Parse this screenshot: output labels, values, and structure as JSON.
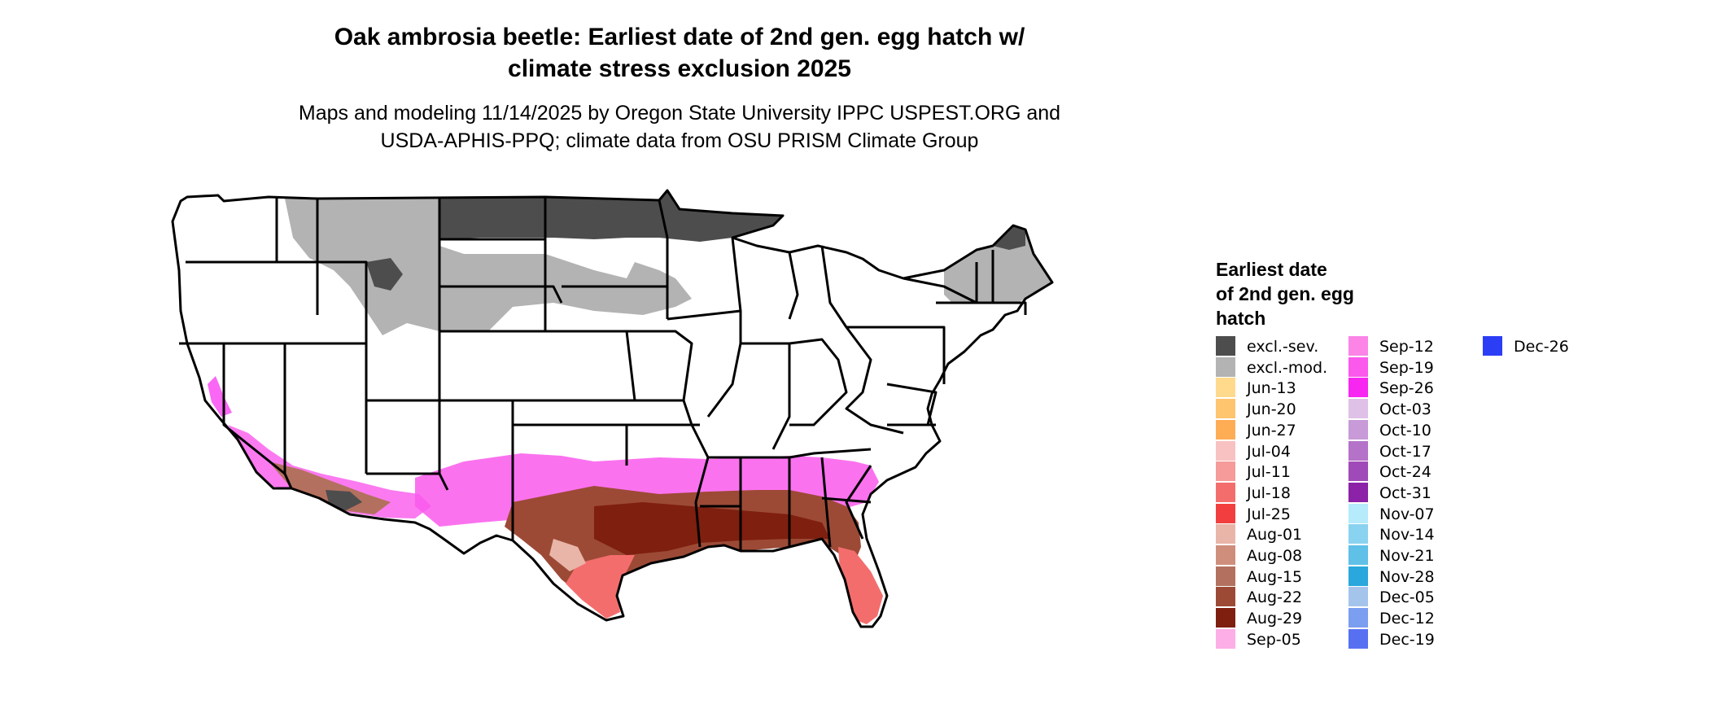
{
  "title": {
    "line1": "Oak ambrosia beetle: Earliest date of 2nd gen. egg hatch w/",
    "line2": "climate stress exclusion 2025"
  },
  "subtitle": {
    "line1": "Maps and modeling 11/14/2025 by Oregon State University IPPC USPEST.ORG and",
    "line2": "USDA-APHIS-PPQ; climate data from OSU PRISM Climate Group"
  },
  "map": {
    "region": "contiguous-united-states",
    "zones": [
      {
        "area": "northern-plains-and-upper-midwest",
        "category": "excl.-sev."
      },
      {
        "area": "northern-rockies-and-plains",
        "category": "excl.-mod."
      },
      {
        "area": "northeast",
        "category": "excl.-mod."
      },
      {
        "area": "central-band-and-carolinas",
        "category": "Sep-19"
      },
      {
        "area": "deep-south",
        "category": "Aug-22"
      },
      {
        "area": "gulf-coast-texas-florida",
        "category": "Jul-18"
      },
      {
        "area": "california-desert-southwest",
        "category": "Sep-26"
      }
    ]
  },
  "legend": {
    "title_line1": "Earliest date",
    "title_line2": "of 2nd gen. egg",
    "title_line3": "hatch",
    "columns": [
      [
        {
          "label": "excl.-sev.",
          "color": "#4d4d4d"
        },
        {
          "label": "excl.-mod.",
          "color": "#b3b3b3"
        },
        {
          "label": "Jun-13",
          "color": "#ffd98c"
        },
        {
          "label": "Jun-20",
          "color": "#ffc46e"
        },
        {
          "label": "Jun-27",
          "color": "#ffad55"
        },
        {
          "label": "Jul-04",
          "color": "#f8c2c2"
        },
        {
          "label": "Jul-11",
          "color": "#f69a9a"
        },
        {
          "label": "Jul-18",
          "color": "#f46d6d"
        },
        {
          "label": "Jul-25",
          "color": "#f23e3e"
        },
        {
          "label": "Aug-01",
          "color": "#e8b5a8"
        },
        {
          "label": "Aug-08",
          "color": "#cf8e7c"
        },
        {
          "label": "Aug-15",
          "color": "#b3705e"
        },
        {
          "label": "Aug-22",
          "color": "#9c4a36"
        },
        {
          "label": "Aug-29",
          "color": "#7f1f10"
        },
        {
          "label": "Sep-05",
          "color": "#fdaee6"
        }
      ],
      [
        {
          "label": "Sep-12",
          "color": "#fb84e6"
        },
        {
          "label": "Sep-19",
          "color": "#fa59ec"
        },
        {
          "label": "Sep-26",
          "color": "#f726f0"
        },
        {
          "label": "Oct-03",
          "color": "#dfc0e6"
        },
        {
          "label": "Oct-10",
          "color": "#c89ad7"
        },
        {
          "label": "Oct-17",
          "color": "#b472c8"
        },
        {
          "label": "Oct-24",
          "color": "#a049b8"
        },
        {
          "label": "Oct-31",
          "color": "#8c22a8"
        },
        {
          "label": "Nov-07",
          "color": "#b5ebfb"
        },
        {
          "label": "Nov-14",
          "color": "#8ad3f0"
        },
        {
          "label": "Nov-21",
          "color": "#5fc0e8"
        },
        {
          "label": "Nov-28",
          "color": "#2aa7dc"
        },
        {
          "label": "Dec-05",
          "color": "#a5c4ec"
        },
        {
          "label": "Dec-12",
          "color": "#7c9ef0"
        },
        {
          "label": "Dec-19",
          "color": "#5770f2"
        }
      ],
      [
        {
          "label": "Dec-26",
          "color": "#2c3df6"
        }
      ]
    ]
  }
}
